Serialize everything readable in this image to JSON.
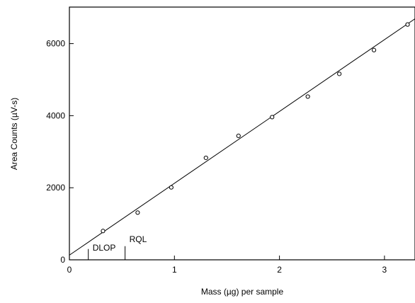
{
  "chart_data": {
    "type": "scatter",
    "xlabel": "Mass (µg) per sample",
    "ylabel": "Area Counts (µV-s)",
    "xlim": [
      0,
      3.3
    ],
    "ylim": [
      0,
      7000
    ],
    "x_ticks": [
      0,
      1,
      2,
      3
    ],
    "x_tick_labels": [
      "0",
      "1",
      "2",
      "3"
    ],
    "y_ticks": [
      0,
      2000,
      4000,
      6000
    ],
    "y_tick_labels": [
      "0",
      "2000",
      "4000",
      "6000"
    ],
    "grid": false,
    "legend": "none",
    "series": [
      {
        "marker": "open circle",
        "x": [
          0.32,
          0.65,
          0.97,
          1.3,
          1.61,
          1.93,
          2.27,
          2.57,
          2.9,
          3.22
        ],
        "y": [
          800,
          1310,
          2010,
          2830,
          3440,
          3960,
          4530,
          5160,
          5820,
          6530
        ]
      }
    ],
    "fit_line": {
      "x": [
        0.0,
        3.3
      ],
      "y": [
        130,
        6690
      ]
    },
    "annotations": [
      {
        "label": "DLOP",
        "x": 0.18
      },
      {
        "label": "RQL",
        "x": 0.53
      }
    ],
    "annotation_bracket_height": 300
  }
}
